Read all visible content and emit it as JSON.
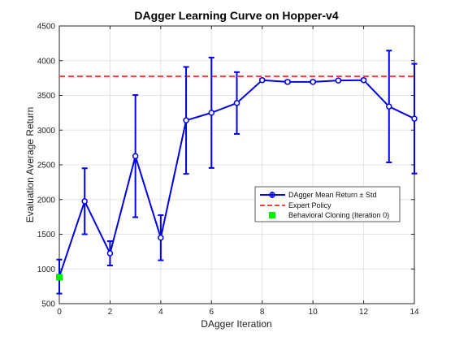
{
  "chart_data": {
    "type": "line",
    "title": "DAgger Learning Curve on Hopper-v4",
    "xlabel": "DAgger Iteration",
    "ylabel": "Evaluation Average Return",
    "xlim": [
      0,
      14
    ],
    "ylim": [
      500,
      4500
    ],
    "xticks": [
      0,
      2,
      4,
      6,
      8,
      10,
      12,
      14
    ],
    "yticks": [
      500,
      1000,
      1500,
      2000,
      2500,
      3000,
      3500,
      4000,
      4500
    ],
    "grid": true,
    "legend_position": "center-right",
    "series": [
      {
        "name": "DAgger Mean Return ± Std",
        "color": "#0000e6",
        "marker": "circle",
        "x": [
          0,
          1,
          2,
          3,
          4,
          5,
          6,
          7,
          8,
          9,
          10,
          11,
          12,
          13,
          14
        ],
        "y": [
          890,
          1975,
          1225,
          2625,
          1450,
          3140,
          3250,
          3390,
          3720,
          3695,
          3695,
          3715,
          3720,
          3340,
          3165
        ],
        "err": [
          245,
          475,
          175,
          880,
          325,
          770,
          795,
          445,
          15,
          20,
          15,
          15,
          15,
          805,
          790
        ]
      }
    ],
    "reference_lines": [
      {
        "name": "Expert Policy",
        "y": 3775,
        "color": "#ff4040",
        "style": "dashed"
      }
    ],
    "points": [
      {
        "name": "Behavioral Cloning (Iteration 0)",
        "x": 0,
        "y": 880,
        "color": "#00ee00",
        "marker": "square"
      }
    ]
  }
}
